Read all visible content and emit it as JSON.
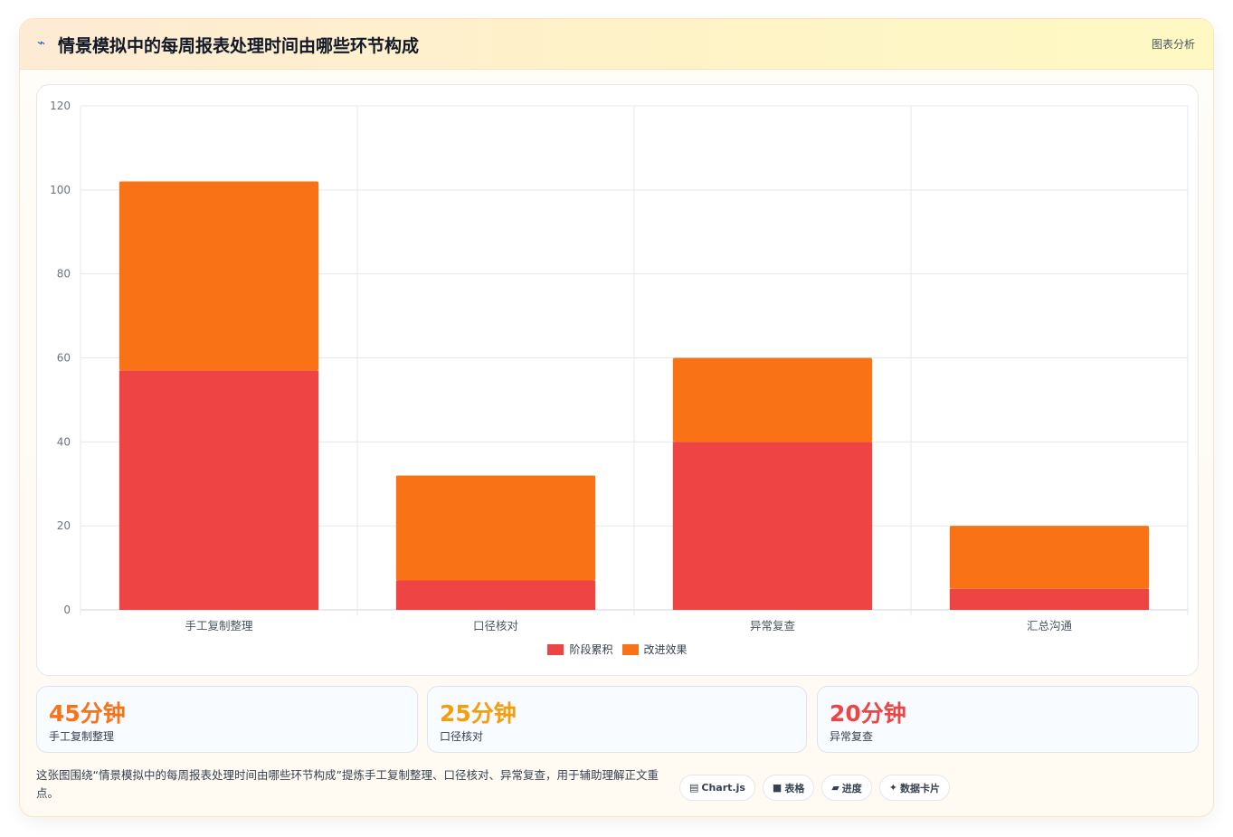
{
  "header": {
    "icon": "chart-line-icon",
    "title": "情景模拟中的每周报表处理时间由哪些环节构成",
    "tag": "图表分析"
  },
  "chart_data": {
    "type": "bar",
    "stacked": true,
    "categories": [
      "手工复制整理",
      "口径核对",
      "异常复查",
      "汇总沟通"
    ],
    "series": [
      {
        "name": "阶段累积",
        "color": "#ef4444",
        "values": [
          57,
          7,
          40,
          5
        ]
      },
      {
        "name": "改进效果",
        "color": "#f97316",
        "values": [
          45,
          25,
          20,
          15
        ]
      }
    ],
    "ylim": [
      0,
      120
    ],
    "yticks": [
      0,
      20,
      40,
      60,
      80,
      100,
      120
    ],
    "grid": true,
    "legend": "bottom"
  },
  "stats": [
    {
      "value": "45分钟",
      "label": "手工复制整理",
      "color": "#f97316"
    },
    {
      "value": "25分钟",
      "label": "口径核对",
      "color": "#f59e0b"
    },
    {
      "value": "20分钟",
      "label": "异常复查",
      "color": "#ef4444"
    }
  ],
  "note": "这张图围绕“情景模拟中的每周报表处理时间由哪些环节构成”提炼手工复制整理、口径核对、异常复查，用于辅助理解正文重点。",
  "pills": [
    {
      "icon": "▤",
      "label": "Chart.js"
    },
    {
      "icon": "■",
      "label": "表格"
    },
    {
      "icon": "▰",
      "label": "进度"
    },
    {
      "icon": "✦",
      "label": "数据卡片"
    }
  ]
}
